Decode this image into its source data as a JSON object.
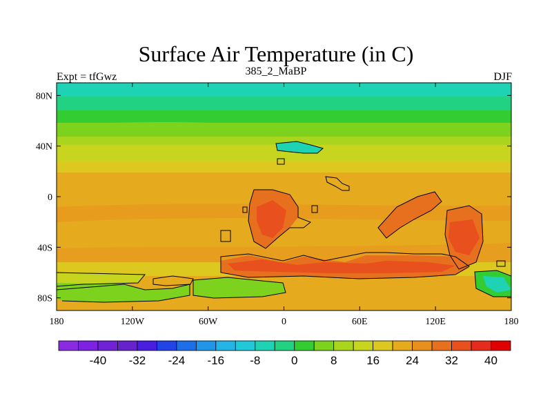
{
  "figure": {
    "title": "Surface Air Temperature (in C)",
    "left_subtitle": "Expt = tfGwz",
    "center_subtitle": "385_2_MaBP",
    "right_subtitle": "DJF"
  },
  "map": {
    "projection": "cylindrical-equidistant",
    "lon_range": [
      -180,
      180
    ],
    "lat_range": [
      -90,
      90
    ],
    "x_ticks": [
      {
        "lon": -180,
        "label": "180"
      },
      {
        "lon": -120,
        "label": "120W"
      },
      {
        "lon": -60,
        "label": "60W"
      },
      {
        "lon": 0,
        "label": "0"
      },
      {
        "lon": 60,
        "label": "60E"
      },
      {
        "lon": 120,
        "label": "120E"
      },
      {
        "lon": 180,
        "label": "180"
      }
    ],
    "y_ticks": [
      {
        "lat": 80,
        "label": "80N"
      },
      {
        "lat": 40,
        "label": "40N"
      },
      {
        "lat": 0,
        "label": "0"
      },
      {
        "lat": -40,
        "label": "40S"
      },
      {
        "lat": -80,
        "label": "80S"
      }
    ]
  },
  "colorbar": {
    "colors": [
      "#8a2be2",
      "#7d22e0",
      "#7222d6",
      "#6622cc",
      "#4a1ee0",
      "#2244e6",
      "#1e6ee8",
      "#2196e8",
      "#24b4e6",
      "#20c8d8",
      "#1ed2b4",
      "#20d282",
      "#33cc33",
      "#7dd21e",
      "#aad51f",
      "#c8d51e",
      "#dcc81e",
      "#e6aa1e",
      "#e8901e",
      "#e6701e",
      "#e8501e",
      "#e62a1e",
      "#e00000"
    ],
    "labels": [
      {
        "boundary": 2,
        "text": "-40"
      },
      {
        "boundary": 4,
        "text": "-32"
      },
      {
        "boundary": 6,
        "text": "-24"
      },
      {
        "boundary": 8,
        "text": "-16"
      },
      {
        "boundary": 10,
        "text": "-8"
      },
      {
        "boundary": 12,
        "text": "0"
      },
      {
        "boundary": 14,
        "text": "8"
      },
      {
        "boundary": 16,
        "text": "16"
      },
      {
        "boundary": 18,
        "text": "24"
      },
      {
        "boundary": 20,
        "text": "32"
      },
      {
        "boundary": 22,
        "text": "40"
      }
    ]
  }
}
